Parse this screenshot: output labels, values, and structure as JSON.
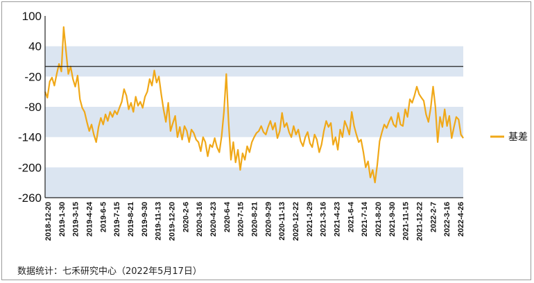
{
  "source_note": "数据统计：七禾研究中心（2022年5月17日）",
  "chart_data": {
    "type": "line",
    "title": "",
    "xlabel": "",
    "ylabel": "",
    "ylim": [
      -260,
      100
    ],
    "y_ticks": [
      100,
      40,
      -20,
      -80,
      -140,
      -200,
      -260
    ],
    "reference_line": 0,
    "grid": "alternating horizontal bands",
    "legend_position": "right",
    "x_tick_labels": [
      "2018-12-20",
      "2019-1-30",
      "2019-3-15",
      "2019-4-24",
      "2019-6-5",
      "2019-7-15",
      "2019-8-21",
      "2019-9-30",
      "2019-11-13",
      "2019-12-20",
      "2020-2-6",
      "2020-3-16",
      "2020-4-23",
      "2020-6-4",
      "2020-7-15",
      "2020-8-21",
      "2020-9-29",
      "2020-11-13",
      "2020-12-22",
      "2021-1-29",
      "2021-3-16",
      "2021-4-23",
      "2021-6-4",
      "2021-7-14",
      "2021-8-20",
      "2021-9-30",
      "2021-11-15",
      "2021-12-22",
      "2022-2-7",
      "2022-3-16",
      "2022-4-26"
    ],
    "series": [
      {
        "name": "基差",
        "color": "#f0a818",
        "values": [
          -50,
          -62,
          -30,
          -22,
          -38,
          -15,
          5,
          -10,
          78,
          30,
          -15,
          0,
          -25,
          -40,
          -18,
          -65,
          -82,
          -90,
          -110,
          -128,
          -115,
          -135,
          -150,
          -120,
          -102,
          -115,
          -95,
          -108,
          -90,
          -100,
          -88,
          -95,
          -82,
          -70,
          -45,
          -58,
          -85,
          -72,
          -90,
          -60,
          -78,
          -70,
          -82,
          -60,
          -50,
          -25,
          -38,
          -8,
          -32,
          -20,
          -55,
          -85,
          -110,
          -72,
          -128,
          -112,
          -98,
          -140,
          -120,
          -145,
          -118,
          -128,
          -150,
          -125,
          -132,
          -145,
          -150,
          -168,
          -140,
          -150,
          -178,
          -155,
          -160,
          -142,
          -160,
          -170,
          -138,
          -90,
          -15,
          -110,
          -185,
          -150,
          -190,
          -165,
          -205,
          -172,
          -185,
          -158,
          -170,
          -150,
          -140,
          -132,
          -128,
          -118,
          -130,
          -135,
          -120,
          -108,
          -125,
          -112,
          -142,
          -128,
          -92,
          -120,
          -112,
          -130,
          -140,
          -118,
          -135,
          -125,
          -148,
          -158,
          -140,
          -130,
          -152,
          -160,
          -135,
          -145,
          -170,
          -155,
          -128,
          -108,
          -120,
          -112,
          -155,
          -140,
          -165,
          -125,
          -140,
          -108,
          -120,
          -135,
          -90,
          -118,
          -135,
          -150,
          -145,
          -170,
          -200,
          -188,
          -220,
          -205,
          -230,
          -195,
          -148,
          -130,
          -115,
          -122,
          -110,
          -100,
          -115,
          -120,
          -92,
          -115,
          -118,
          -85,
          -100,
          -65,
          -72,
          -58,
          -40,
          -55,
          -62,
          -68,
          -95,
          -110,
          -82,
          -40,
          -80,
          -150,
          -100,
          -120,
          -85,
          -118,
          -98,
          -142,
          -120,
          -100,
          -105,
          -135,
          -142
        ]
      }
    ]
  }
}
